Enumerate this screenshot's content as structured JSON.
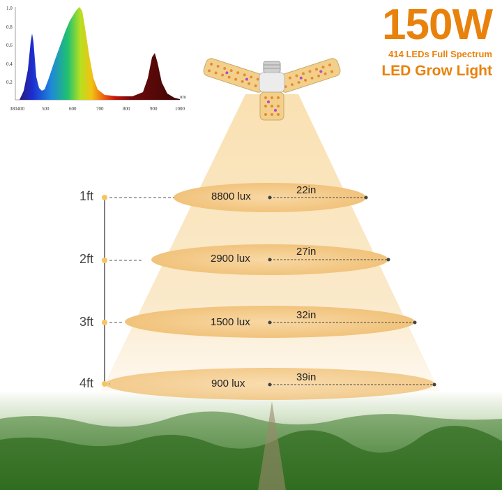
{
  "header": {
    "wattage": "150W",
    "led_info": "414 LEDs Full Spectrum",
    "product": "LED Grow Light"
  },
  "spectrum": {
    "y_ticks": [
      "1.0",
      "0.8",
      "0.6",
      "0.4",
      "0.2"
    ],
    "x_ticks": [
      "380400",
      "500",
      "600",
      "700",
      "800",
      "900",
      "1000"
    ],
    "unit": "nm"
  },
  "levels": [
    {
      "height": "1ft",
      "lux": "8800 lux",
      "width": "22in"
    },
    {
      "height": "2ft",
      "lux": "2900 lux",
      "width": "27in"
    },
    {
      "height": "3ft",
      "lux": "1500 lux",
      "width": "32in"
    },
    {
      "height": "4ft",
      "lux": "900 lux",
      "width": "39in"
    }
  ],
  "colors": {
    "accent": "#e8820c",
    "beam": "#f8d79a",
    "ellipse": "#f6c983",
    "grass": "#3f7a2a"
  }
}
